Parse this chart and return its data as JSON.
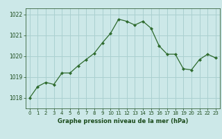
{
  "x": [
    0,
    1,
    2,
    3,
    4,
    5,
    6,
    7,
    8,
    9,
    10,
    11,
    12,
    13,
    14,
    15,
    16,
    17,
    18,
    19,
    20,
    21,
    22,
    23
  ],
  "y": [
    1018.0,
    1018.55,
    1018.75,
    1018.65,
    1019.2,
    1019.2,
    1019.55,
    1019.85,
    1020.15,
    1020.65,
    1021.1,
    1021.78,
    1021.68,
    1021.5,
    1021.68,
    1021.35,
    1020.5,
    1020.1,
    1020.1,
    1019.4,
    1019.35,
    1019.85,
    1020.1,
    1019.92
  ],
  "line_color": "#2d6a2d",
  "marker": "D",
  "marker_size": 2.2,
  "bg_color": "#cce8e8",
  "grid_color": "#aad0d0",
  "xlabel": "Graphe pression niveau de la mer (hPa)",
  "xlabel_color": "#1a4a1a",
  "tick_color": "#1a4a1a",
  "bottom_bar_color": "#336633",
  "ylim": [
    1017.5,
    1022.3
  ],
  "yticks": [
    1018,
    1019,
    1020,
    1021,
    1022
  ],
  "xticks": [
    0,
    1,
    2,
    3,
    4,
    5,
    6,
    7,
    8,
    9,
    10,
    11,
    12,
    13,
    14,
    15,
    16,
    17,
    18,
    19,
    20,
    21,
    22,
    23
  ]
}
